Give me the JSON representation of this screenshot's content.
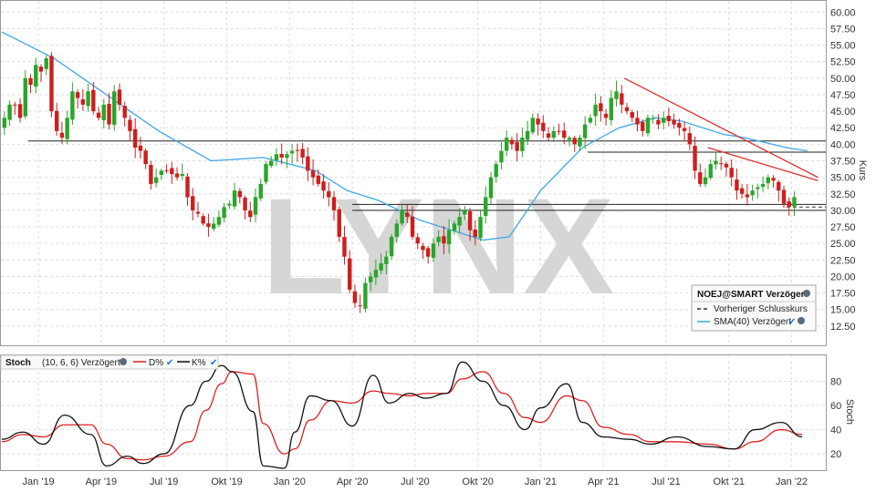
{
  "chart_data": [
    {
      "type": "candlestick",
      "watermark": "LYNX",
      "ylabel": "Kurs",
      "ylim": [
        10,
        61
      ],
      "yticks": [
        "60.00",
        "57.50",
        "55.00",
        "52.50",
        "50.00",
        "47.50",
        "45.00",
        "42.50",
        "40.00",
        "37.50",
        "35.00",
        "32.50",
        "30.00",
        "27.50",
        "25.00",
        "22.50",
        "20.00",
        "17.50",
        "15.00",
        "12.50"
      ],
      "ytick_values": [
        60,
        57.5,
        55,
        52.5,
        50,
        47.5,
        45,
        42.5,
        40,
        37.5,
        35,
        32.5,
        30,
        27.5,
        25,
        22.5,
        20,
        17.5,
        15,
        12.5
      ],
      "x_range": [
        0,
        157
      ],
      "legend": {
        "title": "NOEJ@SMART Verzögert",
        "items": [
          "Vorheriger Schlusskurs",
          "SMA(40) Verzögert"
        ]
      },
      "colors": {
        "up": "#2aa52a",
        "down": "#cc1f1f",
        "sma": "#3fa7e6",
        "trend": "#e03030"
      },
      "series": [
        {
          "name": "NOEJ@SMART Verzögert",
          "closes": [
            44,
            46,
            46,
            44,
            50,
            49,
            52,
            51,
            53,
            45,
            42,
            41,
            44,
            48,
            47,
            46,
            48,
            45,
            44,
            46,
            43,
            48,
            46,
            44,
            42,
            39.5,
            39,
            37,
            34,
            35,
            36,
            36,
            35.5,
            35,
            35.5,
            32,
            30,
            29.5,
            28,
            27.5,
            28,
            29,
            30.5,
            31,
            33,
            32,
            30,
            29,
            32,
            34,
            37,
            37.5,
            38.5,
            38,
            38.5,
            39,
            39,
            38,
            36,
            35,
            34,
            33,
            32,
            30,
            26,
            23,
            18,
            16,
            15.5,
            19,
            20,
            21,
            22,
            23,
            26,
            28,
            30,
            29,
            26,
            25,
            24,
            23,
            25,
            26,
            25,
            27,
            28,
            29,
            30,
            27,
            26,
            29,
            32,
            35,
            37,
            39,
            41,
            40,
            39,
            41,
            42,
            44,
            43,
            42,
            41,
            42,
            42,
            41,
            41,
            40,
            41,
            43,
            44,
            46,
            45,
            44,
            47,
            48,
            46,
            45,
            44,
            43,
            42,
            44,
            44,
            43,
            44,
            43.5,
            43,
            42.5,
            42,
            40,
            36,
            34,
            35,
            37,
            37.5,
            37,
            36.5,
            35,
            33,
            32.5,
            32,
            33,
            33.5,
            34,
            35,
            34.5,
            33,
            31,
            30.5,
            32
          ]
        },
        {
          "name": "SMA(40) Verzögert",
          "x": [
            0,
            10,
            20,
            30,
            40,
            50,
            60,
            66,
            72,
            80,
            92,
            97,
            103,
            111,
            118,
            125,
            130,
            138,
            142,
            150,
            154
          ],
          "values": [
            57,
            53,
            47.5,
            42,
            37.5,
            38,
            36,
            33,
            31.5,
            28.5,
            25.5,
            26,
            33,
            39.5,
            42.5,
            44,
            43.5,
            41.5,
            41,
            39.5,
            39
          ]
        }
      ],
      "previous_close_level": 30.5,
      "horizontal_lines": [
        40.5,
        38.8,
        30.9,
        30.0
      ],
      "trend_lines": [
        {
          "x": [
            119,
            156
          ],
          "y": [
            50,
            35
          ]
        },
        {
          "x": [
            135,
            156
          ],
          "y": [
            39.5,
            34.5
          ]
        }
      ],
      "xlabels": [
        "Jan '19",
        "Apr '19",
        "Jul '19",
        "Okt '19",
        "Jan '20",
        "Apr '20",
        "Jul '20",
        "Okt '20",
        "Jan '21",
        "Apr '21",
        "Jul '21",
        "Okt '21",
        "Jan '22"
      ],
      "xlabel_positions": [
        7,
        19,
        31,
        43,
        55,
        67,
        79,
        91,
        103,
        115,
        127,
        139,
        151
      ]
    },
    {
      "type": "line",
      "ylabel": "Stoch",
      "ylim": [
        8,
        100
      ],
      "yticks": [
        "80",
        "60",
        "40",
        "20"
      ],
      "ytick_values": [
        80,
        60,
        40,
        20
      ],
      "legend": {
        "title": "Stoch",
        "params": "(10, 6, 6) Verzögert",
        "items": [
          "D%",
          "K%"
        ]
      },
      "colors": {
        "d": "#e02020",
        "k": "#111111"
      },
      "series": [
        {
          "name": "K%",
          "x": [
            0,
            4,
            8,
            12,
            17,
            20,
            24,
            27,
            31,
            36,
            39,
            42,
            44,
            48,
            50,
            54,
            56,
            59,
            63,
            67,
            71,
            74,
            78,
            81,
            85,
            88,
            92,
            96,
            100,
            103,
            108,
            111,
            115,
            120,
            124,
            129,
            135,
            140,
            144,
            149,
            153
          ],
          "values": [
            32,
            38,
            28,
            52,
            36,
            10,
            18,
            12,
            20,
            60,
            80,
            93,
            88,
            55,
            10,
            8,
            38,
            68,
            64,
            43,
            85,
            62,
            70,
            66,
            70,
            96,
            80,
            60,
            40,
            58,
            78,
            46,
            34,
            32,
            28,
            34,
            26,
            24,
            40,
            46,
            34
          ]
        },
        {
          "name": "D%",
          "x": [
            0,
            4,
            8,
            12,
            17,
            20,
            24,
            27,
            31,
            36,
            39,
            42,
            44,
            48,
            50,
            54,
            56,
            59,
            63,
            67,
            71,
            74,
            78,
            81,
            85,
            88,
            92,
            96,
            100,
            103,
            108,
            111,
            115,
            120,
            124,
            129,
            135,
            140,
            144,
            149,
            153
          ],
          "values": [
            30,
            36,
            34,
            44,
            44,
            28,
            16,
            15,
            18,
            30,
            56,
            78,
            88,
            86,
            45,
            20,
            24,
            48,
            64,
            62,
            72,
            70,
            68,
            70,
            70,
            82,
            88,
            70,
            50,
            46,
            68,
            64,
            42,
            36,
            30,
            30,
            28,
            24,
            30,
            40,
            36
          ]
        }
      ],
      "xlabels": [
        "Jan '19",
        "Apr '19",
        "Jul '19",
        "Okt '19",
        "Jan '20",
        "Apr '20",
        "Jul '20",
        "Okt '20",
        "Jan '21",
        "Apr '21",
        "Jul '21",
        "Okt '21",
        "Jan '22"
      ],
      "xlabel_positions": [
        7,
        19,
        31,
        43,
        55,
        67,
        79,
        91,
        103,
        115,
        127,
        139,
        151
      ]
    }
  ]
}
